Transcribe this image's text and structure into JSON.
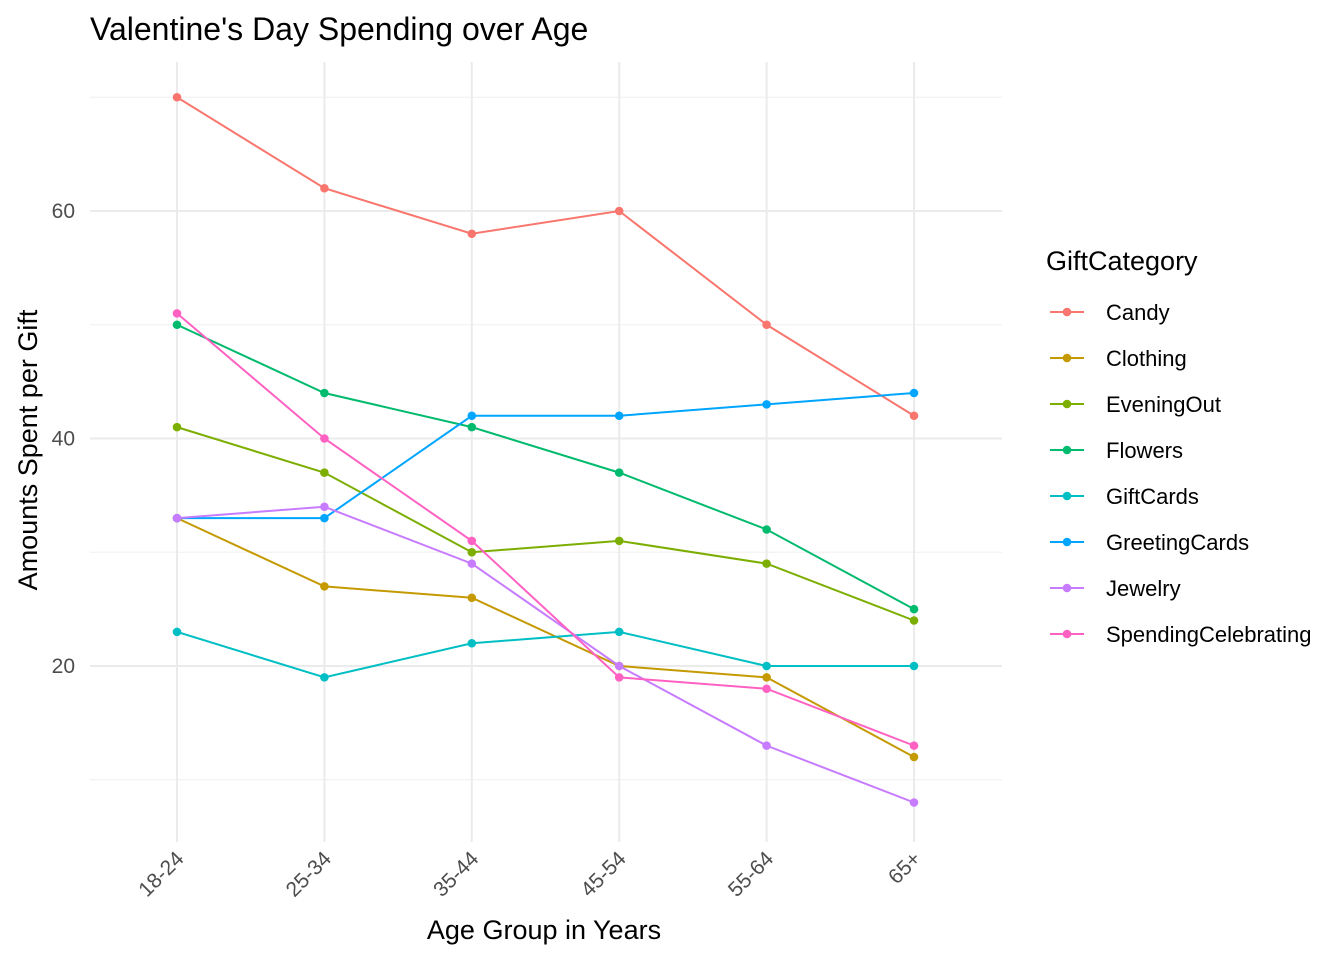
{
  "chart_data": {
    "type": "line",
    "title": "Valentine's Day Spending over Age",
    "xlabel": "Age Group in Years",
    "ylabel": "Amounts Spent per Gift",
    "categories": [
      "18-24",
      "25-34",
      "35-44",
      "45-54",
      "55-64",
      "65+"
    ],
    "yticks": [
      20,
      40,
      60
    ],
    "ylim": [
      5,
      72.5
    ],
    "grid": true,
    "legend_title": "GiftCategory",
    "legend_position": "right",
    "series": [
      {
        "name": "Candy",
        "color": "#F8766D",
        "values": [
          70,
          62,
          58,
          60,
          50,
          42
        ]
      },
      {
        "name": "Clothing",
        "color": "#C49A00",
        "values": [
          33,
          27,
          26,
          20,
          19,
          12
        ]
      },
      {
        "name": "EveningOut",
        "color": "#7CAE00",
        "values": [
          41,
          37,
          30,
          31,
          29,
          24
        ]
      },
      {
        "name": "Flowers",
        "color": "#00BA6E",
        "values": [
          50,
          44,
          41,
          37,
          32,
          25
        ]
      },
      {
        "name": "GiftCards",
        "color": "#00BFC4",
        "values": [
          23,
          19,
          22,
          23,
          20,
          20
        ]
      },
      {
        "name": "GreetingCards",
        "color": "#00A5FF",
        "values": [
          33,
          33,
          42,
          42,
          43,
          44
        ]
      },
      {
        "name": "Jewelry",
        "color": "#C77CFF",
        "values": [
          33,
          34,
          29,
          20,
          13,
          8
        ]
      },
      {
        "name": "SpendingCelebrating",
        "color": "#FF61C3",
        "values": [
          51,
          40,
          31,
          19,
          18,
          13
        ]
      }
    ]
  }
}
